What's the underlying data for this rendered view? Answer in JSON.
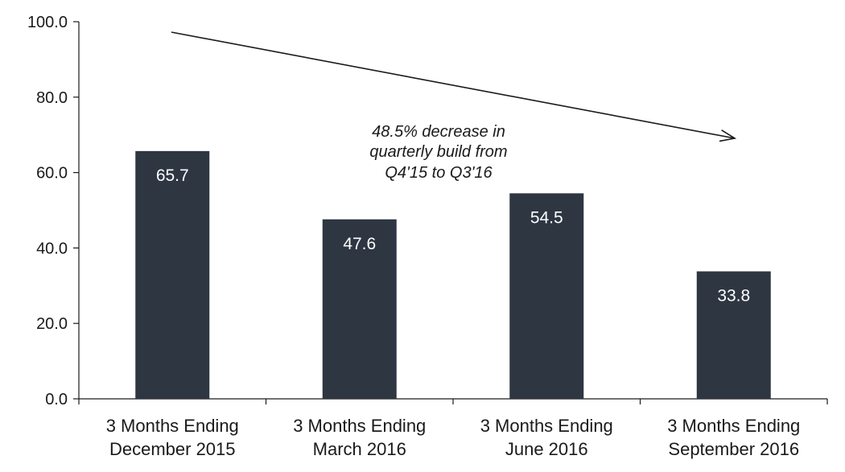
{
  "chart_data": {
    "type": "bar",
    "categories": [
      [
        "3 Months Ending",
        "December 2015"
      ],
      [
        "3 Months Ending",
        "March  2016"
      ],
      [
        "3 Months Ending",
        "June 2016"
      ],
      [
        "3 Months Ending",
        "September 2016"
      ]
    ],
    "values": [
      65.7,
      47.6,
      54.5,
      33.8
    ],
    "value_labels": [
      "65.7",
      "47.6",
      "54.5",
      "33.8"
    ],
    "ylim": [
      0,
      100
    ],
    "yticks": [
      "0.0",
      "20.0",
      "40.0",
      "60.0",
      "80.0",
      "100.0"
    ],
    "ytick_values": [
      0,
      20,
      40,
      60,
      80,
      100
    ],
    "grid": false,
    "bar_color": "#2e3642",
    "annotation": {
      "lines": [
        "48.5% decrease in",
        "quarterly build from",
        "Q4'15 to Q3'16"
      ],
      "arrow": "trend arrow pointing down-right"
    }
  }
}
